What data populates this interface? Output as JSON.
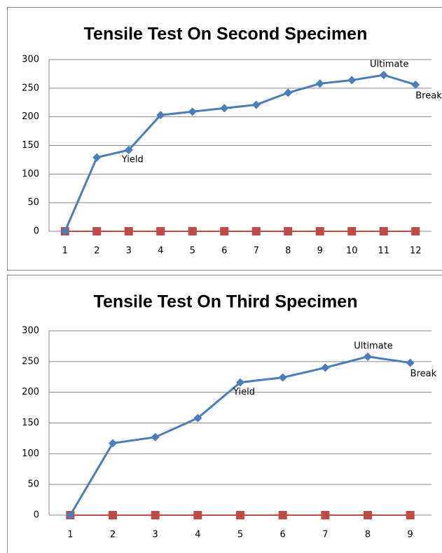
{
  "chart_data": [
    {
      "type": "line",
      "title": "Tensile Test On Second Specimen",
      "categories": [
        "1",
        "2",
        "3",
        "4",
        "5",
        "6",
        "7",
        "8",
        "9",
        "10",
        "11",
        "12"
      ],
      "series": [
        {
          "color": "#4a7ebb",
          "marker": "diamond",
          "values": [
            0,
            129,
            142,
            203,
            209,
            215,
            221,
            242,
            258,
            264,
            273,
            256
          ]
        },
        {
          "color": "#be4b48",
          "marker": "square",
          "values": [
            0,
            0,
            0,
            0,
            0,
            0,
            0,
            0,
            0,
            0,
            0,
            0
          ]
        }
      ],
      "annotations": [
        {
          "text": "Yield",
          "at": "3"
        },
        {
          "text": "Ultimate",
          "at": "11"
        },
        {
          "text": "Break",
          "at": "12"
        }
      ],
      "ylim": [
        0,
        300
      ],
      "yticks": [
        0,
        50,
        100,
        150,
        200,
        250,
        300
      ],
      "grid": true
    },
    {
      "type": "line",
      "title": "Tensile Test On Third Specimen",
      "categories": [
        "1",
        "2",
        "3",
        "4",
        "5",
        "6",
        "7",
        "8",
        "9"
      ],
      "series": [
        {
          "color": "#4a7ebb",
          "marker": "diamond",
          "values": [
            0,
            117,
            127,
            158,
            216,
            224,
            240,
            258,
            248
          ]
        },
        {
          "color": "#be4b48",
          "marker": "square",
          "values": [
            0,
            0,
            0,
            0,
            0,
            0,
            0,
            0,
            0
          ]
        }
      ],
      "annotations": [
        {
          "text": "Yield",
          "at": "5"
        },
        {
          "text": "Ultimate",
          "at": "8"
        },
        {
          "text": "Break",
          "at": "9"
        }
      ],
      "ylim": [
        0,
        300
      ],
      "yticks": [
        0,
        50,
        100,
        150,
        200,
        250,
        300
      ],
      "grid": true
    }
  ]
}
